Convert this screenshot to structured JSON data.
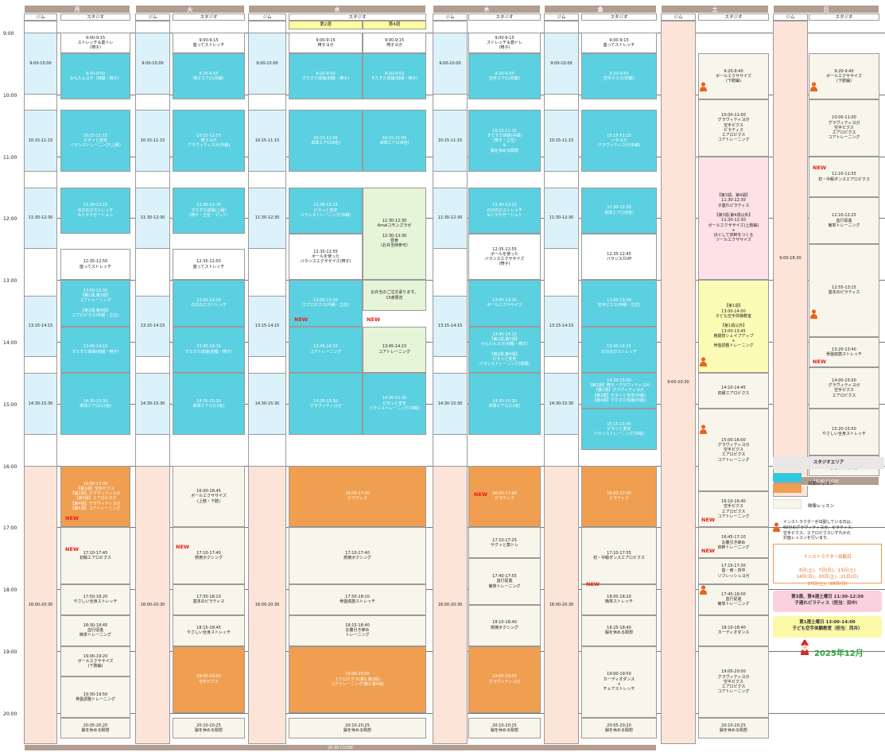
{
  "days": [
    "月",
    "火",
    "水",
    "木",
    "金",
    "土",
    "日"
  ],
  "gym_label": "ジム",
  "studio_label": "スタジオ",
  "wed_sub": [
    "第2週",
    "第4週"
  ],
  "hours": [
    "9:00",
    "10:00",
    "11:00",
    "12:00",
    "13:00",
    "14:00",
    "15:00",
    "16:00",
    "17:00",
    "18:00",
    "19:00",
    "20:00"
  ],
  "gym_times": {
    "a": "9:00-10:00",
    "b": "10:15-11:15",
    "c": "11:30-12:30",
    "d": "13:15-14:15",
    "e": "14:30-15:30",
    "f": "16:00-20:30",
    "sat": "9:00-20:30",
    "sun": "9:00-16:30"
  },
  "new_label": "NEW",
  "close_main": "20:30 CLOSE",
  "close_sun": "16:30 CLOSE",
  "mon": [
    "9:00-9:15\nストレッチ＆筋トレ\n(椅子)",
    "9:20-9:50\nかんたんヨガ（初級・椅子）",
    "10:15-11:15\nピタッと安定\nバランストレーニング(上級)",
    "11:30-12:15\nのびのびストレッチ\n&リラクゼーション",
    "12:35-12:50\n座ってストレッチ",
    "13:00-13:30\n【第1週,第3週】\nコアトレーニング\n\n【第2週,第4週】\nエアロビクス(中級・立位)",
    "13:45-14:15\nすたすた体操(初級・椅子)",
    "14:30-15:30\n卓球エアロ(12名)",
    "16:00-17:00\n【第1週】空手ピクス\n【第2週】グラヴィティヨガ\n【第3週】エアロビクス\n【第4週】グラヴィティヨガ\n【第5週】コアトレーニング",
    "17:10-17:45\n初級エアロビクス",
    "17:50-18:20\nやさしい全身ストレッチ",
    "18:30-18:45\n血行促進\n簡単トレーニング",
    "19:00-19:20\nボールエクササイズ\n(下肢編)",
    "19:30-19:50\n骨盤調整トレーニング",
    "20:05-20:20\n脳を休める瞑想"
  ],
  "tue": [
    "9:00-9:15\n座ってストレッチ",
    "9:25-9:55\n椅子エアロ(初級)",
    "10:15-11:15\n椅子ヨガ\nグラヴィティヨガ(中級)",
    "11:30-12:15\nすたすた体操(上級)\n(椅子・立位・マット)",
    "12:35-12:50\n座ってストレッチ",
    "13:00-13:30\nのびのびストレッチ",
    "13:45-14:15\nすたすた体操(初級・椅子)",
    "14:30-15:30\n卓球エアロ(12名)",
    "16:00-16:45\nボールエクササイズ\n(上肢・下肢)",
    "17:10-17:40\n燃焼ボクシング",
    "17:50-18:10\n基本のピラティス",
    "18:15-18:45\nやさしい全身ストレッチ",
    "19:00-20:00\n空手ピクス",
    "20:10-20:25\n脳を休める瞑想"
  ],
  "wed": [
    "9:00-9:15\n椅子ヨガ",
    "9:00-9:15\n椅子ヨガ",
    "9:20-9:50\nすたすた体操(初級・椅子)",
    "9:20-9:50\nすたすた体操(初級・椅子)",
    "10:15-11:05\n卓球エアロ(8名)",
    "10:15-11:05\n卓球エアロ(8名)",
    "11:30-12:15\nピタッと安定\nバランストレーニング(中級)",
    "12:35-12:55\nボールを使った\nバランスエクササイズ(椅子)",
    "11:30-12:30\nAmaiコモンズラボ\n\n12:30-13:30\n昼食\n（お弁当持参可）",
    "お弁当のご注文承ります。\n15食限定",
    "13:00-13:30\nエアロビクス(中級・立位)",
    "13:45-14:15\nコアトレーニング",
    "13:45-14:15\nコアトレーニング",
    "14:30-15:30\nグラヴィティヨガ",
    "14:30-15:30\nピタッと安定\nバランストレーニング(中級)",
    "16:00-17:00\nピラティス",
    "17:10-17:40\n燃焼ボクシング",
    "17:50-18:10\n骨盤底筋ストレッチ",
    "18:15-18:40\nお腹引き締め\nトレーニング",
    "19:00-20:00\nエアロビクス(第1,第3週)\nコアトレーニング(第2,第4週)",
    "20:10-20:25\n脳を休める瞑想"
  ],
  "thu": [
    "9:00-9:15\nストレッチ＆筋トレ\n(椅子)",
    "9:20-9:50\n空手エアロ(初級)",
    "10:15-11:15\nすたすた体操(中級)\n(椅子・立位)\n&\n脳を休める瞑想",
    "11:30-12:15\nのびのびストレッチ\n&リラクゼーション",
    "12:35-12:55\nボールを使った\nバランスエクササイズ\n(椅子)",
    "13:00-13:30\nボールエクササイズ",
    "13:45-14:15\n【第1週,第3週】\nかんたんヨガ(初級・椅子)\n\n【第2週,第4週】\nピタッと安定\nバランストレーニング(初級)",
    "14:30-15:30\n卓球エアロ(12名)",
    "16:00-17:00\nピラティス",
    "17:10-17:25\nサクッと筋トレ",
    "17:40-17:55\n血行促進\n簡単トレーニング",
    "18:10-18:40\n燃焼ボクシング",
    "19:00-20:00\nグラヴィティヨガ",
    "20:10-20:25\n脳を休める瞑想"
  ],
  "fri": [
    "9:00-9:15\n座ってストレッチ",
    "9:20-9:50\n空手ピクス(初級)",
    "10:15-11:15\nハタヨガ\nグラヴィティヨガ(中級)",
    "11:30-12:30\n卓球エアロ(8名)",
    "12:35-12:45\nバランスカUP",
    "13:00-13:30\n空手ピクス(中級・立位)",
    "13:45-14:15\nのびのびストレッチ",
    "14:30-15:00\n【第1週】椅子・グラヴィティヨガ\n【第2週】グラヴィティヨガ\n【第3週】ピタッと安定(中級)\n【第4週】すたすた体操(中級)",
    "15:15-15:45\nピタッと安定\nバランストレーニング(中級)",
    "16:00-17:00\nピラティス",
    "17:10-17:55\n初・中級ダンスエアロビクス",
    "18:00-18:20\n簡単ストレッチ",
    "18:25-18:40\n脳を休める瞑想",
    "19:00-19:50\nカーディオダンス\n+\nチェアストレッチ",
    "20:05-20:20\n脳を休める瞑想"
  ],
  "sat": [
    "9:20-9:40\nボールエクササイズ\n(下肢編)",
    "10:00-11:00\nグラヴィティヨガ\n空手ピクス\nピラティス\nエアロビクス\nコアトレーニング",
    "【第3週、第4週】\n11:30-12:30\n子連れピラティス\n\n【第3週,第4週以外】\n11:30-12:30\nボールエクササイズ(上肢編)\n+\nほぐして体幹をつくる\nツールエクササイズ",
    "【第1週】\n13:00-14:00\n子ども空手体験教室\n\n【第1週以外】\n13:00-13:45\n格闘技シェイプアップ\n+\n骨盤調整トレーニング",
    "14:10-14:45\n初級エアロビクス",
    "15:00-16:00\nグラヴィティヨガ\n空手ピクス\nエアロビクス\nコアトレーニング",
    "16:10-16:40\n空手ピクス\nエアロビクス\nコアトレーニング",
    "16:45-17:10\nお腹引き締め\n体幹トレーニング",
    "17:15-17:30\n首・肩・背中\nリフレッシュヨガ",
    "17:45-18:00\n血行促進\n簡単トレーニング",
    "18:10-18:40\nカーディオダンス",
    "19:00-20:00\nグラヴィティヨガ\n空手ピクス\nエアロビクス\nコアトレーニング",
    "20:10-20:25\n脳を休める瞑想"
  ],
  "sun": [
    "9:20-9:40\nボールエクササイズ\n(下肢編)",
    "10:00-11:00\nグラヴィティヨガ\n空手ピクス\nエアロビクス\nコアトレーニング",
    "11:10-11:55\n初・中級ダンスエアロビクス",
    "12:10-12:25\n血行促進\n簡単トレーニング",
    "12:55-13:15\n基本のピラティス",
    "13:20-13:40\n骨盤底筋ストレッチ",
    "14:00-15:00\nグラヴィティヨガ\n空手ピクス\nエアロビクス",
    "15:20-15:50\nやさしい全身ストレッチ",
    "15:55-16:10\n脳を休める瞑想"
  ],
  "legend": {
    "title": "スタジオエリア",
    "face": "対面レッスン",
    "video": "映像レッスン",
    "instructor_note": "インストラクターが出勤している日は、\n60分のグラヴィティヨガ、ピラティス、\n空手ピクス、エアロビクスいずれかの\n対面レッスンを行います。",
    "dates_title": "インストラクター出勤日",
    "dates": "6日(土)、7日(日)、13日(土)\n14日(日)、20日(土)、21日(日)\n27日(土)、28日(日)",
    "pink_note": "第3週、第4週土曜日 11:30-12:30\n子連れピラティス（担当：田中）",
    "yellow_note": "第1週土曜日 13:00-14:00\n子ども空手体験教室（担当：西井）",
    "month": "2025年12月"
  },
  "colors": {
    "cyan": "#5bd0e0",
    "orange": "#f09e50",
    "cream": "#f8f5ea",
    "peach": "#fde4d8",
    "lightblue": "#dcf2fa",
    "header": "#b29d90",
    "pink": "#fde0e8",
    "yellow": "#fdfcb6",
    "green": "#e6f4d8",
    "accent": "#e0241b"
  }
}
